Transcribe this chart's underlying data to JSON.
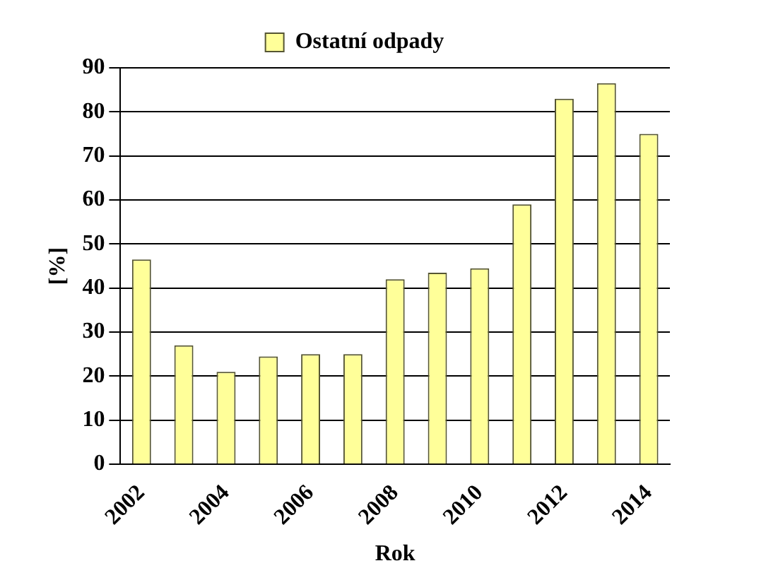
{
  "chart_data": {
    "type": "bar",
    "xlabel": "Rok",
    "ylabel": "[%]",
    "categories": [
      "2002",
      null,
      "2004",
      null,
      "2006",
      null,
      "2008",
      null,
      "2010",
      null,
      "2012",
      null,
      "2014"
    ],
    "series": [
      {
        "name": "Ostatní odpady",
        "color": "#ffff99",
        "values": [
          46.5,
          27,
          21,
          24.5,
          25,
          25,
          42,
          43.5,
          44.5,
          59,
          83,
          86.5,
          75
        ]
      }
    ],
    "ylim": [
      0,
      90
    ],
    "yticks": [
      0,
      10,
      20,
      30,
      40,
      50,
      60,
      70,
      80,
      90
    ],
    "grid": "y",
    "legend": "top"
  }
}
